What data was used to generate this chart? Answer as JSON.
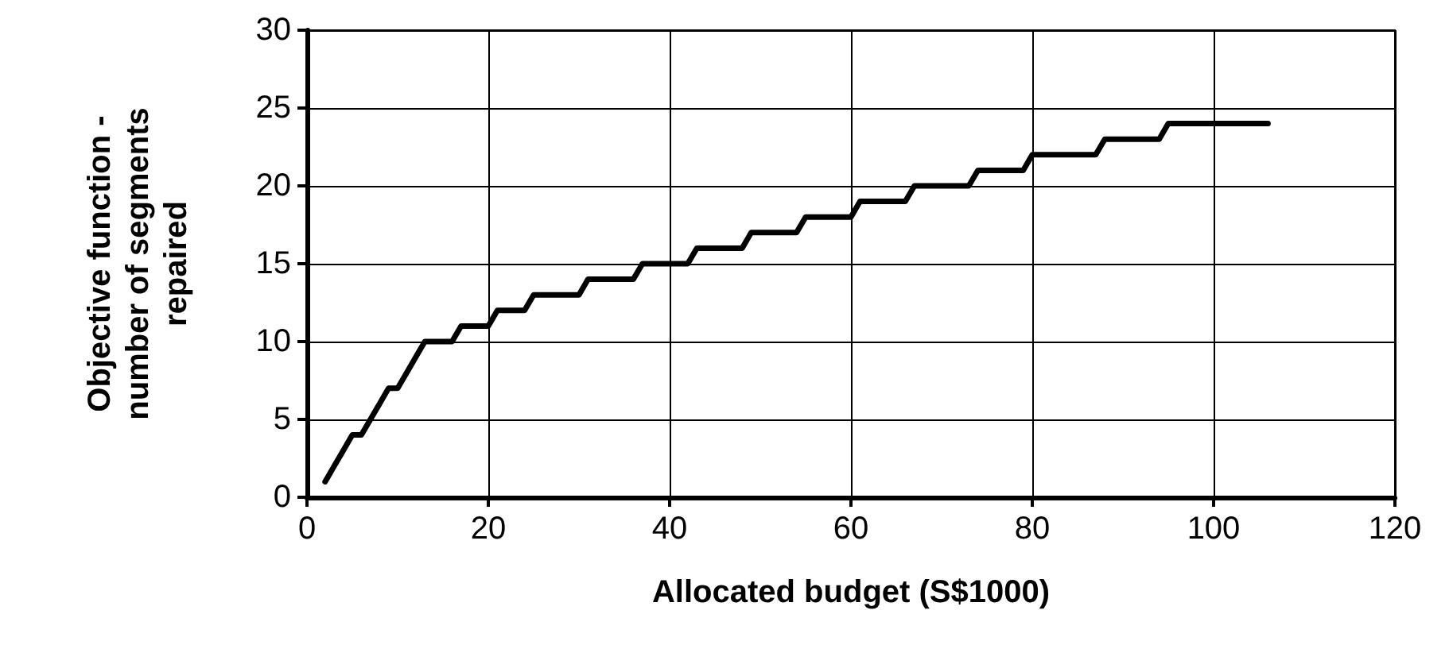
{
  "chart_data": {
    "type": "line",
    "xlabel": "Allocated budget (S$1000)",
    "ylabel": "Objective function - number of segments repaired",
    "series": [
      {
        "color": "#000000",
        "x": [
          2,
          3,
          4,
          5,
          6,
          7,
          8,
          9,
          10,
          11,
          12,
          13,
          16,
          17,
          20,
          21,
          24,
          25,
          30,
          31,
          36,
          37,
          42,
          43,
          48,
          49,
          54,
          55,
          60,
          61,
          66,
          67,
          73,
          74,
          79,
          80,
          87,
          88,
          94,
          95,
          106
        ],
        "values": [
          1,
          2,
          3,
          4,
          4,
          5,
          6,
          7,
          7,
          8,
          9,
          10,
          10,
          11,
          11,
          12,
          12,
          13,
          13,
          14,
          14,
          15,
          15,
          16,
          16,
          17,
          17,
          18,
          18,
          19,
          19,
          20,
          20,
          21,
          21,
          22,
          22,
          23,
          23,
          24,
          24
        ]
      }
    ],
    "xlim": [
      0,
      120
    ],
    "xticks": [
      0,
      20,
      40,
      60,
      80,
      100,
      120
    ],
    "ylim": [
      0,
      30
    ],
    "yticks": [
      0,
      5,
      10,
      15,
      20,
      25,
      30
    ],
    "grid": true,
    "marker": "none",
    "line_style": "solid"
  }
}
